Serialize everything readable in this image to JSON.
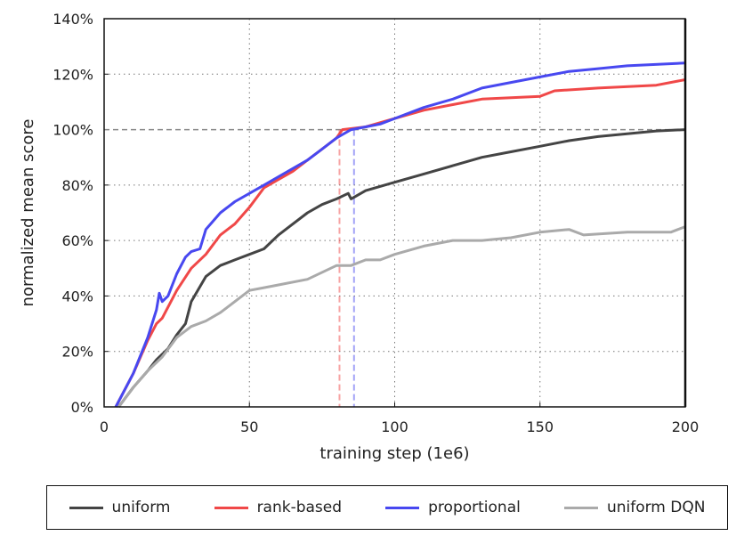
{
  "chart_data": {
    "type": "line",
    "xlabel": "training step (1e6)",
    "ylabel": "normalized mean score",
    "xlim": [
      0,
      200
    ],
    "ylim": [
      0,
      140
    ],
    "xticks": [
      "0",
      "50",
      "100",
      "150",
      "200"
    ],
    "yticks": [
      "0%",
      "20%",
      "40%",
      "60%",
      "80%",
      "100%",
      "120%",
      "140%"
    ],
    "grid": true,
    "legend_position": "bottom",
    "reference_line_y": 100,
    "markers": [
      {
        "x": 81,
        "series": "rank-based"
      },
      {
        "x": 86,
        "series": "proportional"
      }
    ],
    "series": [
      {
        "name": "uniform",
        "color": "#444444",
        "x": [
          5,
          10,
          15,
          18,
          22,
          25,
          28,
          30,
          35,
          40,
          45,
          50,
          55,
          60,
          70,
          75,
          80,
          84,
          85,
          90,
          100,
          110,
          120,
          130,
          140,
          150,
          160,
          170,
          180,
          190,
          200
        ],
        "y": [
          0,
          7,
          13,
          17,
          21,
          26,
          30,
          38,
          47,
          51,
          53,
          55,
          57,
          62,
          70,
          73,
          75,
          77,
          75,
          78,
          81,
          84,
          87,
          90,
          92,
          94,
          96,
          97.5,
          98.5,
          99.5,
          100
        ]
      },
      {
        "name": "rank-based",
        "color": "#f04848",
        "x": [
          4,
          10,
          15,
          18,
          20,
          25,
          30,
          35,
          40,
          45,
          50,
          55,
          60,
          65,
          70,
          75,
          80,
          82,
          90,
          100,
          110,
          120,
          130,
          150,
          155,
          170,
          190,
          200
        ],
        "y": [
          0,
          12,
          24,
          30,
          32,
          42,
          50,
          55,
          62,
          66,
          72,
          79,
          82,
          85,
          89,
          93,
          97,
          100,
          101,
          104,
          107,
          109,
          111,
          112,
          114,
          115,
          116,
          118
        ]
      },
      {
        "name": "proportional",
        "color": "#4848f0",
        "x": [
          4,
          10,
          15,
          18,
          19,
          20,
          22,
          25,
          28,
          30,
          33,
          35,
          40,
          45,
          50,
          55,
          60,
          65,
          70,
          75,
          80,
          85,
          90,
          95,
          100,
          110,
          120,
          130,
          140,
          150,
          160,
          170,
          180,
          200
        ],
        "y": [
          0,
          12,
          25,
          35,
          41,
          38,
          40,
          48,
          54,
          56,
          57,
          64,
          70,
          74,
          77,
          80,
          83,
          86,
          89,
          93,
          97,
          100,
          101,
          102,
          104,
          108,
          111,
          115,
          117,
          119,
          121,
          122,
          123,
          124
        ]
      },
      {
        "name": "uniform DQN",
        "color": "#aaaaaa",
        "x": [
          5,
          10,
          15,
          20,
          25,
          30,
          35,
          40,
          45,
          50,
          55,
          60,
          70,
          80,
          85,
          90,
          95,
          100,
          110,
          120,
          130,
          140,
          150,
          160,
          165,
          180,
          195,
          200
        ],
        "y": [
          0,
          7,
          13,
          18,
          25,
          29,
          31,
          34,
          38,
          42,
          43,
          44,
          46,
          51,
          51,
          53,
          53,
          55,
          58,
          60,
          60,
          61,
          63,
          64,
          62,
          63,
          63,
          65
        ]
      }
    ]
  }
}
